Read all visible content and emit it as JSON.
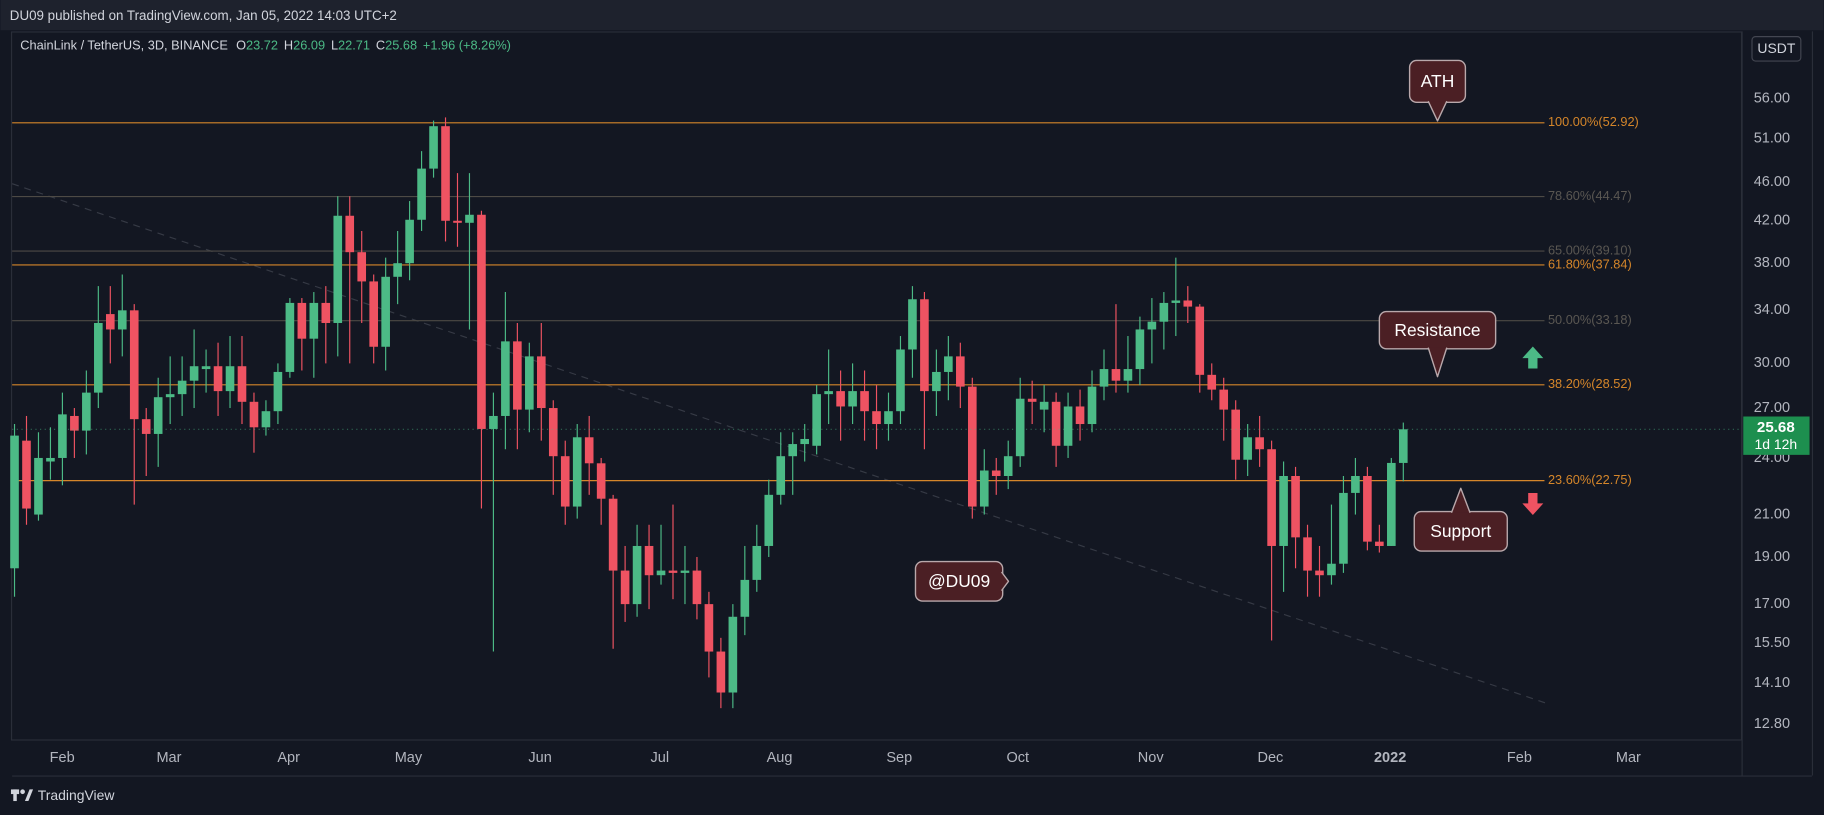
{
  "published": "DU09 published on TradingView.com, Jan 05, 2022 14:03 UTC+2",
  "brand": "TradingView",
  "chart_data": {
    "type": "candlestick",
    "symbol": "ChainLink / TetherUS, 3D, BINANCE",
    "ohlc_labels": [
      "O",
      "H",
      "L",
      "C"
    ],
    "change": "+1.96 (+8.26%)",
    "currency": "USDT",
    "countdown": "1d 12h",
    "up_color": "#4cba86",
    "down_color": "#ef5362",
    "log_scale": true,
    "ylim": [
      12.32,
      65.66
    ],
    "yticks": [
      {
        "value": 56,
        "label": "56.00"
      },
      {
        "value": 51,
        "label": "51.00"
      },
      {
        "value": 46,
        "label": "46.00"
      },
      {
        "value": 42,
        "label": "42.00"
      },
      {
        "value": 38,
        "label": "38.00"
      },
      {
        "value": 34,
        "label": "34.00"
      },
      {
        "value": 30,
        "label": "30.00"
      },
      {
        "value": 27,
        "label": "27.00"
      },
      {
        "value": 24,
        "label": "24.00"
      },
      {
        "value": 21,
        "label": "21.00"
      },
      {
        "value": 19,
        "label": "19.00"
      },
      {
        "value": 17,
        "label": "17.00"
      },
      {
        "value": 15.5,
        "label": "15.50"
      },
      {
        "value": 14.1,
        "label": "14.10"
      },
      {
        "value": 12.8,
        "label": "12.80"
      }
    ],
    "xlim": [
      -0.2,
      144.3
    ],
    "xticks": [
      {
        "value": 3.98,
        "label": "Feb"
      },
      {
        "value": 12.9,
        "label": "Mar"
      },
      {
        "value": 22.9,
        "label": "Apr"
      },
      {
        "value": 32.9,
        "label": "May"
      },
      {
        "value": 43.9,
        "label": "Jun"
      },
      {
        "value": 53.9,
        "label": "Jul"
      },
      {
        "value": 63.9,
        "label": "Aug"
      },
      {
        "value": 73.9,
        "label": "Sep"
      },
      {
        "value": 83.8,
        "label": "Oct"
      },
      {
        "value": 94.9,
        "label": "Nov"
      },
      {
        "value": 104.9,
        "label": "Dec"
      },
      {
        "value": 114.9,
        "label": "2022"
      },
      {
        "value": 125.7,
        "label": "Feb"
      },
      {
        "value": 134.8,
        "label": "Mar"
      }
    ],
    "fib_levels": [
      {
        "value": 52.92,
        "label": "100.00%(52.92)",
        "color": "#d5862a"
      },
      {
        "value": 44.47,
        "label": "78.60%(44.47)",
        "color": "#4d4a45"
      },
      {
        "value": 39.1,
        "label": "65.00%(39.10)",
        "color": "#4d4a45"
      },
      {
        "value": 37.84,
        "label": "61.80%(37.84)",
        "color": "#d5862a"
      },
      {
        "value": 33.18,
        "label": "50.00%(33.18)",
        "color": "#4d4a45"
      },
      {
        "value": 28.52,
        "label": "38.20%(28.52)",
        "color": "#d5862a"
      },
      {
        "value": 22.75,
        "label": "23.60%(22.75)",
        "color": "#d5862a"
      }
    ],
    "annotations": [
      "ATH",
      "Resistance",
      "Support",
      "@DU09"
    ],
    "ohlc": [
      [
        18.5,
        26,
        17.3,
        25.3
      ],
      [
        25,
        26.5,
        20.5,
        21.3
      ],
      [
        21,
        25.5,
        20.7,
        24
      ],
      [
        23.8,
        25.8,
        22.8,
        24
      ],
      [
        24,
        28,
        22.5,
        26.6
      ],
      [
        26.5,
        27,
        24,
        25.6
      ],
      [
        25.6,
        29.5,
        24.2,
        28
      ],
      [
        28,
        36,
        27,
        33
      ],
      [
        33.7,
        36,
        30,
        32.5
      ],
      [
        32.5,
        37,
        30.5,
        34
      ],
      [
        34,
        34.5,
        21.5,
        26.3
      ],
      [
        26.3,
        27,
        23,
        25.4
      ],
      [
        25.4,
        29,
        23.5,
        27.7
      ],
      [
        27.7,
        30.5,
        26,
        27.9
      ],
      [
        27.9,
        30.5,
        26.5,
        28.8
      ],
      [
        28.8,
        32.5,
        27,
        29.8
      ],
      [
        29.6,
        31,
        28,
        29.8
      ],
      [
        29.8,
        31.5,
        26.5,
        28.1
      ],
      [
        28.1,
        32,
        27,
        29.8
      ],
      [
        29.8,
        32,
        26,
        27.4
      ],
      [
        27.4,
        28,
        24.3,
        25.8
      ],
      [
        25.8,
        27.5,
        25.3,
        26.8
      ],
      [
        26.8,
        30,
        26,
        29.4
      ],
      [
        29.4,
        35,
        29,
        34.6
      ],
      [
        34.6,
        35,
        29.5,
        31.8
      ],
      [
        31.8,
        35.5,
        29,
        34.6
      ],
      [
        34.6,
        36,
        30,
        33
      ],
      [
        33,
        44.5,
        30.5,
        42.5
      ],
      [
        42.5,
        44.5,
        30,
        39
      ],
      [
        39,
        41,
        33,
        36.4
      ],
      [
        36.4,
        37,
        30,
        31.2
      ],
      [
        31.2,
        38.5,
        29.5,
        36.8
      ],
      [
        36.8,
        41,
        34.5,
        38
      ],
      [
        38,
        44,
        36.5,
        42.1
      ],
      [
        42.1,
        49.5,
        41,
        47.5
      ],
      [
        47.5,
        53.2,
        46.5,
        52.5
      ],
      [
        52.5,
        53.6,
        40,
        42
      ],
      [
        42,
        47,
        39.5,
        41.8
      ],
      [
        41.8,
        47,
        32.5,
        42.6
      ],
      [
        42.6,
        43,
        21.3,
        25.7
      ],
      [
        25.7,
        28,
        15.2,
        26.5
      ],
      [
        26.5,
        35.5,
        24.5,
        31.6
      ],
      [
        31.6,
        33,
        24.5,
        26.9
      ],
      [
        26.9,
        31.5,
        25.5,
        30.5
      ],
      [
        30.5,
        33,
        25,
        27
      ],
      [
        27,
        27.5,
        22,
        24.1
      ],
      [
        24.1,
        25,
        20.5,
        21.4
      ],
      [
        21.4,
        26,
        20.8,
        25.2
      ],
      [
        25.2,
        26.5,
        22,
        23.7
      ],
      [
        23.7,
        24,
        20.5,
        21.8
      ],
      [
        21.8,
        22,
        15.3,
        18.4
      ],
      [
        18.4,
        19.5,
        16.3,
        17
      ],
      [
        17,
        20.5,
        16.5,
        19.5
      ],
      [
        19.5,
        20.5,
        16.8,
        18.2
      ],
      [
        18.2,
        20.5,
        17.8,
        18.4
      ],
      [
        18.4,
        21.5,
        17.2,
        18.3
      ],
      [
        18.3,
        19.5,
        17,
        18.4
      ],
      [
        18.4,
        19,
        16.4,
        17
      ],
      [
        17,
        17.5,
        14.3,
        15.2
      ],
      [
        15.2,
        15.7,
        13.3,
        13.8
      ],
      [
        13.8,
        17,
        13.3,
        16.5
      ],
      [
        16.5,
        19.5,
        15.8,
        18
      ],
      [
        18,
        20.5,
        17.5,
        19.5
      ],
      [
        19.5,
        22.8,
        19,
        22
      ],
      [
        22,
        25.5,
        21.5,
        24.1
      ],
      [
        24.1,
        25.5,
        22,
        24.8
      ],
      [
        24.8,
        26,
        23.8,
        25.1
      ],
      [
        24.7,
        28.5,
        24.2,
        27.9
      ],
      [
        27.9,
        31,
        26,
        28.1
      ],
      [
        28.1,
        29.5,
        25,
        27.1
      ],
      [
        27.1,
        30,
        26,
        28.1
      ],
      [
        28.1,
        29.5,
        25,
        26.8
      ],
      [
        26.8,
        28.5,
        24.5,
        26
      ],
      [
        26,
        28,
        25,
        26.8
      ],
      [
        26.8,
        32,
        26,
        31
      ],
      [
        31,
        36,
        29,
        34.9
      ],
      [
        34.9,
        35.5,
        24.5,
        28.1
      ],
      [
        28.1,
        31,
        26.5,
        29.4
      ],
      [
        29.4,
        32,
        27.5,
        30.5
      ],
      [
        30.5,
        31.5,
        27,
        28.4
      ],
      [
        28.4,
        29,
        20.8,
        21.4
      ],
      [
        21.4,
        24.5,
        21,
        23.3
      ],
      [
        23.3,
        24,
        22,
        23
      ],
      [
        23,
        25,
        22.3,
        24.1
      ],
      [
        24.1,
        29,
        23.5,
        27.6
      ],
      [
        27.6,
        28.8,
        26,
        27.4
      ],
      [
        26.9,
        28.5,
        25.5,
        27.4
      ],
      [
        27.4,
        28,
        23.5,
        24.7
      ],
      [
        24.7,
        28,
        24,
        27.1
      ],
      [
        27.1,
        28.2,
        25,
        26
      ],
      [
        26,
        29.5,
        25.5,
        28.4
      ],
      [
        28.4,
        31,
        27.5,
        29.6
      ],
      [
        29.6,
        34.5,
        28,
        28.8
      ],
      [
        28.8,
        32,
        28,
        29.6
      ],
      [
        29.6,
        33.5,
        28.5,
        32.5
      ],
      [
        32.5,
        35,
        30,
        33.1
      ],
      [
        33.1,
        35.5,
        31,
        34.6
      ],
      [
        34.6,
        38.5,
        32,
        34.8
      ],
      [
        34.8,
        36,
        33,
        34.3
      ],
      [
        34.3,
        34.5,
        28,
        29.2
      ],
      [
        29.2,
        30,
        27.5,
        28.2
      ],
      [
        28.2,
        29,
        25,
        26.9
      ],
      [
        26.9,
        27.5,
        22.8,
        23.9
      ],
      [
        23.9,
        26,
        23,
        25.2
      ],
      [
        25.2,
        26.5,
        23.5,
        24.5
      ],
      [
        24.5,
        25,
        15.6,
        19.5
      ],
      [
        19.5,
        23.8,
        17.5,
        23
      ],
      [
        23,
        23.5,
        18.5,
        19.9
      ],
      [
        19.9,
        20.5,
        17.3,
        18.4
      ],
      [
        18.4,
        19.5,
        17.3,
        18.2
      ],
      [
        18.2,
        21.5,
        17.8,
        18.7
      ],
      [
        18.7,
        23,
        18.3,
        22.1
      ],
      [
        22.1,
        24,
        21,
        23
      ],
      [
        23,
        23.5,
        19.3,
        19.7
      ],
      [
        19.7,
        20.5,
        19.2,
        19.5
      ],
      [
        19.5,
        24,
        19.5,
        23.72
      ],
      [
        23.72,
        26.09,
        22.71,
        25.68
      ]
    ]
  }
}
